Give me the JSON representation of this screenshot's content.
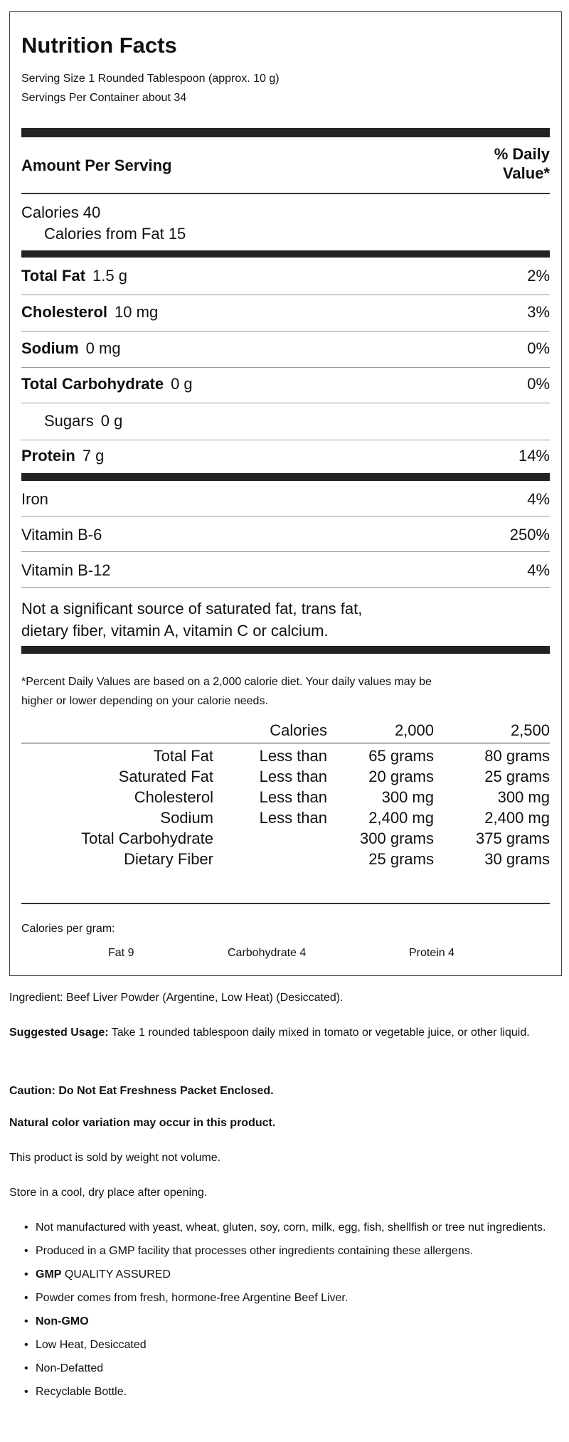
{
  "label": {
    "title": "Nutrition Facts",
    "serving_size": "Serving Size 1 Rounded Tablespoon (approx. 10 g)",
    "servings_per_container": "Servings Per Container about 34",
    "amount_per_serving": "Amount Per Serving",
    "daily_value_header_1": "% Daily",
    "daily_value_header_2": "Value*",
    "calories": "Calories 40",
    "calories_from_fat": "Calories from Fat 15",
    "nutrients": [
      {
        "name": "Total Fat",
        "amount": "1.5 g",
        "dv": "2%"
      },
      {
        "name": "Cholesterol",
        "amount": "10 mg",
        "dv": "3%"
      },
      {
        "name": "Sodium",
        "amount": "0 mg",
        "dv": "0%"
      },
      {
        "name": "Total Carbohydrate",
        "amount": "0 g",
        "dv": "0%"
      },
      {
        "name": "Sugars",
        "amount": "0 g",
        "dv": ""
      },
      {
        "name": "Protein",
        "amount": "7 g",
        "dv": "14%"
      }
    ],
    "vitamins": [
      {
        "name": "Iron",
        "dv": "4%"
      },
      {
        "name": "Vitamin B-6",
        "dv": "250%"
      },
      {
        "name": "Vitamin B-12",
        "dv": "4%"
      }
    ],
    "not_significant_1": "Not a significant source of saturated fat, trans fat,",
    "not_significant_2": "dietary fiber, vitamin A, vitamin C or calcium.",
    "footnote_1": "*Percent Daily Values are based on a 2,000 calorie diet. Your daily values may be",
    "footnote_2": "higher or lower depending on your calorie needs.",
    "dv_table": {
      "header": [
        "",
        "Calories",
        "2,000",
        "2,500"
      ],
      "rows": [
        [
          "Total Fat",
          "Less than",
          "65 grams",
          "80 grams"
        ],
        [
          "Saturated Fat",
          "Less than",
          "20 grams",
          "25 grams"
        ],
        [
          "Cholesterol",
          "Less than",
          "300 mg",
          "300 mg"
        ],
        [
          "Sodium",
          "Less than",
          "2,400 mg",
          "2,400 mg"
        ],
        [
          "Total Carbohydrate",
          "",
          "300 grams",
          "375 grams"
        ],
        [
          "Dietary Fiber",
          "",
          "25 grams",
          "30 grams"
        ]
      ]
    },
    "calories_per_gram": "Calories per gram:",
    "cpg_fat": "Fat 9",
    "cpg_carb": "Carbohydrate 4",
    "cpg_protein": "Protein 4"
  },
  "info": {
    "ingredient": "Ingredient: Beef Liver Powder (Argentine, Low Heat) (Desiccated).",
    "usage_label": "Suggested Usage:",
    "usage_text": " Take 1 rounded tablespoon daily mixed in tomato or vegetable juice, or other liquid.",
    "caution": "Caution: Do Not Eat Freshness Packet Enclosed.",
    "natural": "Natural color variation may occur in this product.",
    "sold": "This product is sold by weight not volume.",
    "store": "Store in a cool, dry place after opening.",
    "bullets": [
      {
        "bold": "",
        "text": "Not manufactured with yeast, wheat, gluten, soy, corn, milk, egg, fish, shellfish or tree nut ingredients."
      },
      {
        "bold": "",
        "text": "Produced in a GMP facility that processes other ingredients containing these allergens."
      },
      {
        "bold": "GMP",
        "text": " QUALITY ASSURED"
      },
      {
        "bold": "",
        "text": "Powder comes from fresh, hormone-free Argentine Beef Liver."
      },
      {
        "bold": "Non-GMO",
        "text": ""
      },
      {
        "bold": "",
        "text": "Low Heat, Desiccated"
      },
      {
        "bold": "",
        "text": "Non-Defatted"
      },
      {
        "bold": "",
        "text": "Recyclable Bottle."
      }
    ]
  }
}
